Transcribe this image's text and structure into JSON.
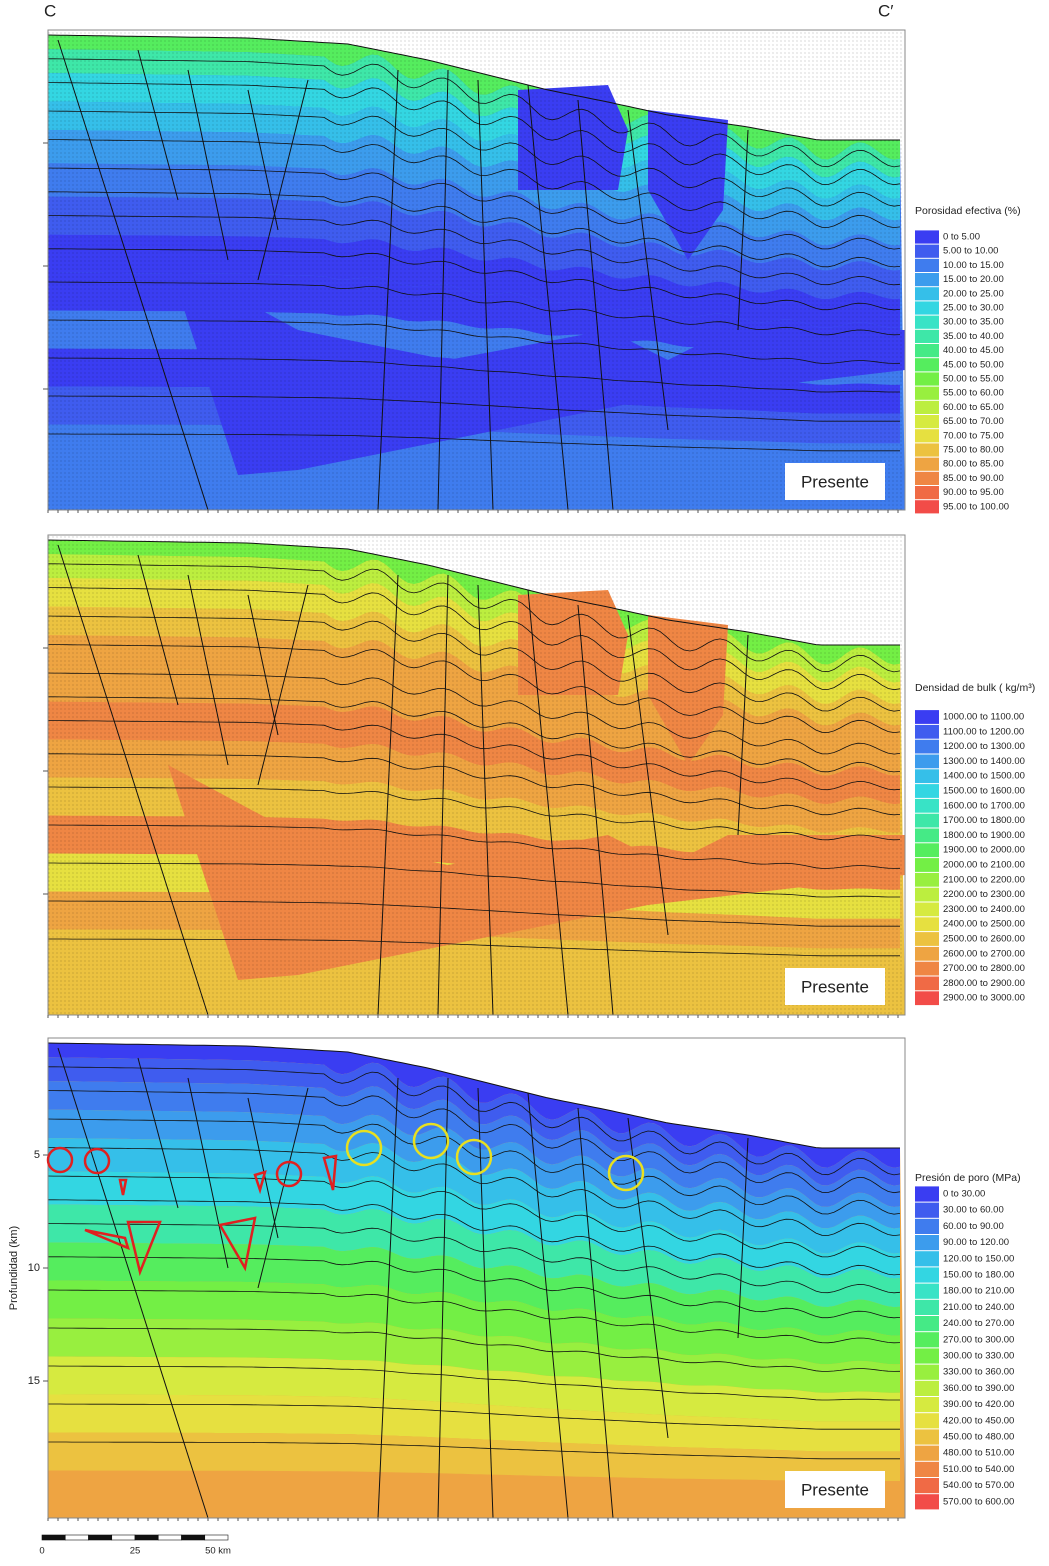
{
  "header": {
    "left": "C",
    "right": "C′"
  },
  "panels": [
    {
      "legend_title": "Porosidad efectiva (%)",
      "stamp": "Presente",
      "legend": [
        {
          "label": "0 to 5.00",
          "color": "#3a3df2"
        },
        {
          "label": "5.00 to 10.00",
          "color": "#3f5cef"
        },
        {
          "label": "10.00 to 15.00",
          "color": "#3f7cee"
        },
        {
          "label": "15.00 to 20.00",
          "color": "#3c9ced"
        },
        {
          "label": "20.00 to 25.00",
          "color": "#35bfe9"
        },
        {
          "label": "25.00 to 30.00",
          "color": "#33d6e2"
        },
        {
          "label": "30.00 to 35.00",
          "color": "#38e3c6"
        },
        {
          "label": "35.00 to 40.00",
          "color": "#3ee7a8"
        },
        {
          "label": "40.00 to 45.00",
          "color": "#45ea86"
        },
        {
          "label": "45.00 to 50.00",
          "color": "#55ed5e"
        },
        {
          "label": "50.00 to 55.00",
          "color": "#73ef45"
        },
        {
          "label": "55.00 to 60.00",
          "color": "#98ef3f"
        },
        {
          "label": "60.00 to 65.00",
          "color": "#bcee3f"
        },
        {
          "label": "65.00 to 70.00",
          "color": "#d6ea40"
        },
        {
          "label": "70.00 to 75.00",
          "color": "#e6e040"
        },
        {
          "label": "75.00 to 80.00",
          "color": "#ecc240"
        },
        {
          "label": "80.00 to 85.00",
          "color": "#eea442"
        },
        {
          "label": "85.00 to 90.00",
          "color": "#ef8644"
        },
        {
          "label": "90.00 to 95.00",
          "color": "#f06a45"
        },
        {
          "label": "95.00 to 100.00",
          "color": "#f24c48"
        }
      ]
    },
    {
      "legend_title": "Densidad de bulk ( kg/m³)",
      "stamp": "Presente",
      "legend": [
        {
          "label": "1000.00 to 1100.00",
          "color": "#3a3df2"
        },
        {
          "label": "1100.00 to 1200.00",
          "color": "#3f5cef"
        },
        {
          "label": "1200.00 to 1300.00",
          "color": "#3f7cee"
        },
        {
          "label": "1300.00 to 1400.00",
          "color": "#3c9ced"
        },
        {
          "label": "1400.00 to 1500.00",
          "color": "#35bfe9"
        },
        {
          "label": "1500.00 to 1600.00",
          "color": "#33d6e2"
        },
        {
          "label": "1600.00 to 1700.00",
          "color": "#38e3c6"
        },
        {
          "label": "1700.00 to 1800.00",
          "color": "#3ee7a8"
        },
        {
          "label": "1800.00 to 1900.00",
          "color": "#45ea86"
        },
        {
          "label": "1900.00 to 2000.00",
          "color": "#55ed5e"
        },
        {
          "label": "2000.00 to 2100.00",
          "color": "#73ef45"
        },
        {
          "label": "2100.00 to 2200.00",
          "color": "#98ef3f"
        },
        {
          "label": "2200.00 to 2300.00",
          "color": "#bcee3f"
        },
        {
          "label": "2300.00 to 2400.00",
          "color": "#d6ea40"
        },
        {
          "label": "2400.00 to 2500.00",
          "color": "#e6e040"
        },
        {
          "label": "2500.00 to 2600.00",
          "color": "#ecc240"
        },
        {
          "label": "2600.00 to 2700.00",
          "color": "#eea442"
        },
        {
          "label": "2700.00 to 2800.00",
          "color": "#ef8644"
        },
        {
          "label": "2800.00 to 2900.00",
          "color": "#f06a45"
        },
        {
          "label": "2900.00 to 3000.00",
          "color": "#f24c48"
        }
      ]
    },
    {
      "legend_title": "Presión de poro (MPa)",
      "stamp": "Presente",
      "legend": [
        {
          "label": "0 to 30.00",
          "color": "#3a3df2"
        },
        {
          "label": "30.00 to 60.00",
          "color": "#3f5cef"
        },
        {
          "label": "60.00 to 90.00",
          "color": "#3f7cee"
        },
        {
          "label": "90.00 to 120.00",
          "color": "#3c9ced"
        },
        {
          "label": "120.00 to 150.00",
          "color": "#35bfe9"
        },
        {
          "label": "150.00 to 180.00",
          "color": "#33d6e2"
        },
        {
          "label": "180.00 to 210.00",
          "color": "#38e3c6"
        },
        {
          "label": "210.00 to 240.00",
          "color": "#3ee7a8"
        },
        {
          "label": "240.00 to 270.00",
          "color": "#45ea86"
        },
        {
          "label": "270.00 to 300.00",
          "color": "#55ed5e"
        },
        {
          "label": "300.00 to 330.00",
          "color": "#73ef45"
        },
        {
          "label": "330.00 to 360.00",
          "color": "#98ef3f"
        },
        {
          "label": "360.00 to 390.00",
          "color": "#bcee3f"
        },
        {
          "label": "390.00 to 420.00",
          "color": "#d6ea40"
        },
        {
          "label": "420.00 to 450.00",
          "color": "#e6e040"
        },
        {
          "label": "450.00 to 480.00",
          "color": "#ecc240"
        },
        {
          "label": "480.00 to 510.00",
          "color": "#eea442"
        },
        {
          "label": "510.00 to 540.00",
          "color": "#ef8644"
        },
        {
          "label": "540.00 to 570.00",
          "color": "#f06a45"
        },
        {
          "label": "570.00 to 600.00",
          "color": "#f24c48"
        }
      ]
    }
  ],
  "depth_axis": {
    "label": "Profundidad (km)",
    "ticks": [
      5,
      10,
      15
    ]
  },
  "scale_bar": [
    "0",
    "25",
    "50 km"
  ]
}
